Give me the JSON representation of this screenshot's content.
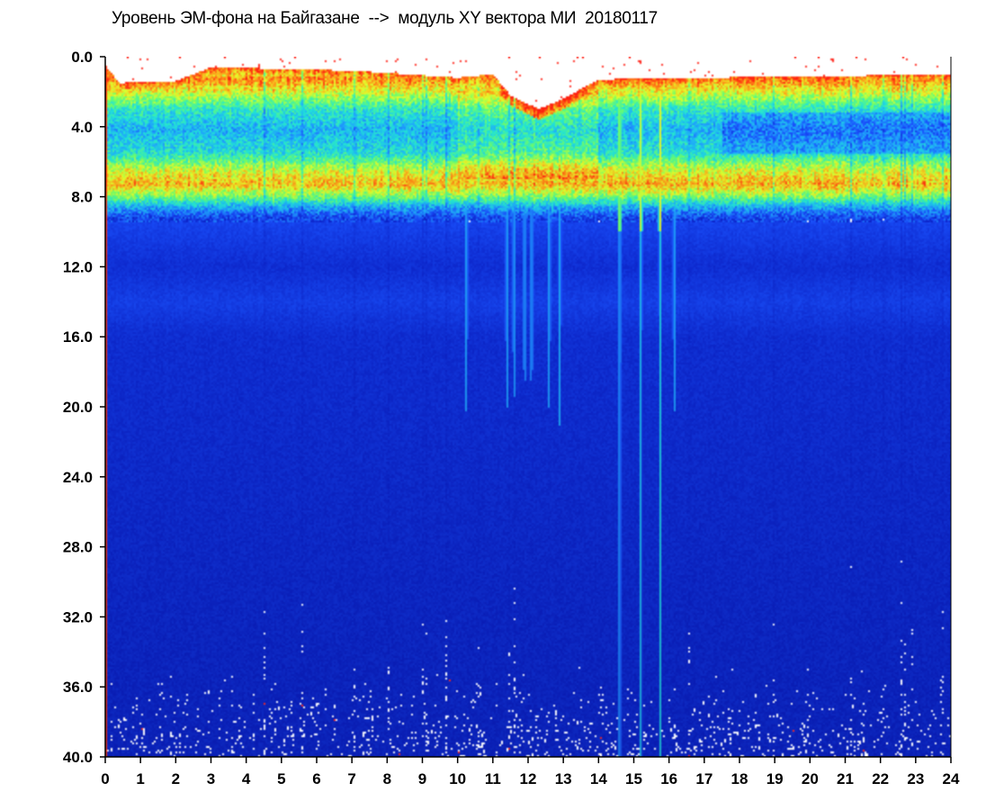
{
  "chart_data": {
    "type": "heatmap",
    "title": "Уровень ЭМ-фона на Байгазане  -->  модуль XY вектора МИ  20180117",
    "xlabel": "",
    "ylabel": "",
    "x_ticks": [
      "0",
      "1",
      "2",
      "3",
      "4",
      "5",
      "6",
      "7",
      "8",
      "9",
      "10",
      "11",
      "12",
      "13",
      "14",
      "15",
      "16",
      "17",
      "18",
      "19",
      "20",
      "21",
      "22",
      "23",
      "24"
    ],
    "y_ticks": [
      "0.0",
      "4.0",
      "8.0",
      "12.0",
      "16.0",
      "20.0",
      "24.0",
      "28.0",
      "32.0",
      "36.0",
      "40.0"
    ],
    "xlim": [
      0,
      24
    ],
    "ylim": [
      0,
      40
    ],
    "y_inverted": true,
    "grid": false,
    "colormap": [
      "#0a1fc8",
      "#1a4fff",
      "#1fa8ff",
      "#22e6d8",
      "#6dff6d",
      "#e6ff2b",
      "#ff9a18",
      "#ff2010"
    ],
    "background_level_color": "#0b1ec4",
    "band_profile": [
      {
        "freq": 0.5,
        "level": 0.0
      },
      {
        "freq": 1.2,
        "level": 0.9
      },
      {
        "freq": 2.0,
        "level": 0.72
      },
      {
        "freq": 3.0,
        "level": 0.45
      },
      {
        "freq": 4.2,
        "level": 0.32
      },
      {
        "freq": 5.5,
        "level": 0.42
      },
      {
        "freq": 6.5,
        "level": 0.7
      },
      {
        "freq": 7.3,
        "level": 0.82
      },
      {
        "freq": 8.0,
        "level": 0.58
      },
      {
        "freq": 8.6,
        "level": 0.3
      },
      {
        "freq": 9.2,
        "level": 0.12
      },
      {
        "freq": 12.0,
        "level": 0.05
      },
      {
        "freq": 14.0,
        "level": 0.1
      },
      {
        "freq": 16.0,
        "level": 0.05
      },
      {
        "freq": 40.0,
        "level": 0.02
      }
    ],
    "band_top_by_hour": [
      {
        "hour": 0.0,
        "freq": 0.5
      },
      {
        "hour": 0.4,
        "freq": 1.5
      },
      {
        "hour": 2.0,
        "freq": 1.4
      },
      {
        "hour": 3.0,
        "freq": 0.6
      },
      {
        "hour": 7.0,
        "freq": 0.8
      },
      {
        "hour": 10.0,
        "freq": 1.2
      },
      {
        "hour": 11.0,
        "freq": 1.0
      },
      {
        "hour": 11.5,
        "freq": 2.2
      },
      {
        "hour": 12.3,
        "freq": 3.0
      },
      {
        "hour": 13.0,
        "freq": 2.4
      },
      {
        "hour": 14.0,
        "freq": 1.3
      },
      {
        "hour": 17.0,
        "freq": 1.2
      },
      {
        "hour": 21.0,
        "freq": 1.1
      },
      {
        "hour": 24.0,
        "freq": 1.0
      }
    ],
    "broadband_events_hours": [
      10.25,
      11.4,
      11.6,
      11.9,
      12.1,
      12.6,
      12.9,
      14.6,
      15.2,
      15.75,
      16.15
    ],
    "strong_events_hours": [
      14.6,
      15.2,
      15.75
    ]
  }
}
